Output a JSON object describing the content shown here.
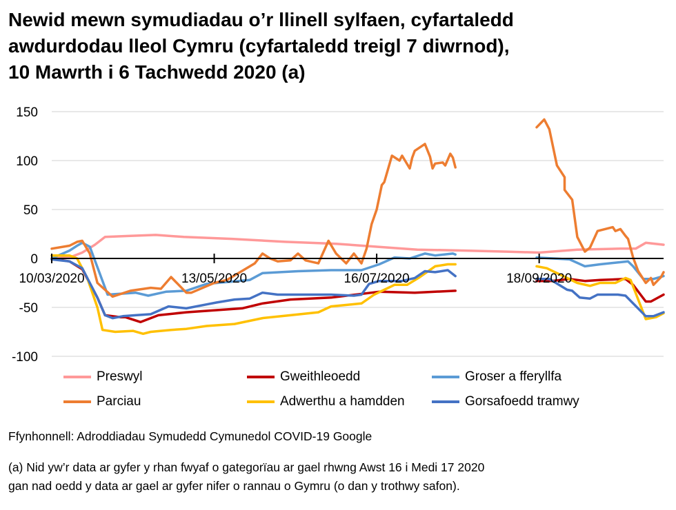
{
  "chart_data": {
    "type": "line",
    "title_lines": [
      "Newid mewn symudiadau o’r llinell sylfaen, cyfartaledd",
      "awdurdodau lleol Cymru (cyfartaledd treigl 7 diwrnod),",
      "10 Mawrth i 6 Tachwedd 2020 (a)"
    ],
    "xlim": [
      "2020-03-10",
      "2020-11-06"
    ],
    "ylim": [
      -100,
      150
    ],
    "y_ticks": [
      150,
      100,
      50,
      0,
      -50,
      -100
    ],
    "x_ticks": [
      {
        "date": "2020-03-10",
        "label": "10/03/2020"
      },
      {
        "date": "2020-05-13",
        "label": "13/05/2020"
      },
      {
        "date": "2020-07-16",
        "label": "16/07/2020"
      },
      {
        "date": "2020-09-18",
        "label": "18/09/2020"
      }
    ],
    "grid": true,
    "legend_position": "bottom",
    "series": [
      {
        "name": "Preswyl",
        "color": "#ff9999",
        "points": [
          [
            "2020-03-10",
            0
          ],
          [
            "2020-03-17",
            1
          ],
          [
            "2020-03-22",
            6
          ],
          [
            "2020-03-27",
            14
          ],
          [
            "2020-03-31",
            22
          ],
          [
            "2020-04-10",
            23
          ],
          [
            "2020-04-20",
            24
          ],
          [
            "2020-05-01",
            22
          ],
          [
            "2020-05-20",
            20
          ],
          [
            "2020-06-10",
            17
          ],
          [
            "2020-06-30",
            15
          ],
          [
            "2020-07-16",
            12
          ],
          [
            "2020-08-01",
            9
          ],
          [
            "2020-08-20",
            8
          ],
          [
            "2020-09-05",
            7
          ],
          [
            "2020-09-18",
            6
          ],
          [
            "2020-10-03",
            9
          ],
          [
            "2020-10-20",
            10
          ],
          [
            "2020-10-26",
            10
          ],
          [
            "2020-10-30",
            16
          ],
          [
            "2020-11-06",
            14
          ]
        ]
      },
      {
        "name": "Gweithleoedd",
        "color": "#c00000",
        "points": [
          [
            "2020-03-10",
            0
          ],
          [
            "2020-03-17",
            -3
          ],
          [
            "2020-03-22",
            -11
          ],
          [
            "2020-03-28",
            -40
          ],
          [
            "2020-03-31",
            -58
          ],
          [
            "2020-04-06",
            -60
          ],
          [
            "2020-04-08",
            -60
          ],
          [
            "2020-04-14",
            -65
          ],
          [
            "2020-04-21",
            -58
          ],
          [
            "2020-05-02",
            -55
          ],
          [
            "2020-05-13",
            -53
          ],
          [
            "2020-05-24",
            -51
          ],
          [
            "2020-06-01",
            -46
          ],
          [
            "2020-06-12",
            -42
          ],
          [
            "2020-06-28",
            -40
          ],
          [
            "2020-07-17",
            -34
          ],
          [
            "2020-07-31",
            -35
          ],
          [
            "2020-08-16",
            -33
          ],
          null,
          [
            "2020-09-17",
            -23
          ],
          [
            "2020-09-23",
            -23
          ],
          [
            "2020-09-30",
            -21
          ],
          [
            "2020-10-06",
            -23
          ],
          [
            "2020-10-12",
            -22
          ],
          [
            "2020-10-22",
            -21
          ],
          [
            "2020-10-25",
            -27
          ],
          [
            "2020-10-30",
            -44
          ],
          [
            "2020-11-01",
            -44
          ],
          [
            "2020-11-06",
            -37
          ]
        ]
      },
      {
        "name": "Groser a fferyllfa",
        "color": "#5b9bd5",
        "points": [
          [
            "2020-03-10",
            0
          ],
          [
            "2020-03-17",
            8
          ],
          [
            "2020-03-20",
            13
          ],
          [
            "2020-03-22",
            16
          ],
          [
            "2020-03-25",
            12
          ],
          [
            "2020-04-01",
            -37
          ],
          [
            "2020-04-12",
            -35
          ],
          [
            "2020-04-17",
            -38
          ],
          [
            "2020-04-24",
            -34
          ],
          [
            "2020-05-02",
            -33
          ],
          [
            "2020-05-10",
            -26
          ],
          [
            "2020-05-27",
            -22
          ],
          [
            "2020-06-01",
            -15
          ],
          [
            "2020-06-15",
            -13
          ],
          [
            "2020-06-28",
            -12
          ],
          [
            "2020-07-10",
            -12
          ],
          [
            "2020-07-17",
            -6
          ],
          [
            "2020-07-23",
            1
          ],
          [
            "2020-07-29",
            0
          ],
          [
            "2020-08-04",
            5
          ],
          [
            "2020-08-08",
            3
          ],
          [
            "2020-08-15",
            5
          ],
          [
            "2020-08-16",
            4
          ],
          null,
          [
            "2020-09-17",
            1
          ],
          [
            "2020-09-30",
            -1
          ],
          [
            "2020-10-06",
            -8
          ],
          [
            "2020-10-12",
            -6
          ],
          [
            "2020-10-23",
            -3
          ],
          [
            "2020-10-25",
            -8
          ],
          [
            "2020-10-29",
            -21
          ],
          [
            "2020-11-02",
            -21
          ],
          [
            "2020-11-06",
            -18
          ]
        ]
      },
      {
        "name": "Parciau",
        "color": "#ed7d31",
        "points": [
          [
            "2020-03-10",
            10
          ],
          [
            "2020-03-17",
            13
          ],
          [
            "2020-03-20",
            17
          ],
          [
            "2020-03-22",
            18
          ],
          [
            "2020-03-25",
            5
          ],
          [
            "2020-03-28",
            -25
          ],
          [
            "2020-04-03",
            -39
          ],
          [
            "2020-04-10",
            -33
          ],
          [
            "2020-04-18",
            -30
          ],
          [
            "2020-04-22",
            -31
          ],
          [
            "2020-04-26",
            -19
          ],
          [
            "2020-05-02",
            -35
          ],
          [
            "2020-05-04",
            -35
          ],
          [
            "2020-05-13",
            -25
          ],
          [
            "2020-05-18",
            -22
          ],
          [
            "2020-05-29",
            -5
          ],
          [
            "2020-06-01",
            5
          ],
          [
            "2020-06-04",
            0
          ],
          [
            "2020-06-07",
            -3
          ],
          [
            "2020-06-12",
            -2
          ],
          [
            "2020-06-15",
            5
          ],
          [
            "2020-06-18",
            -2
          ],
          [
            "2020-06-23",
            -5
          ],
          [
            "2020-06-27",
            18
          ],
          [
            "2020-06-30",
            5
          ],
          [
            "2020-07-04",
            -5
          ],
          [
            "2020-07-07",
            5
          ],
          [
            "2020-07-10",
            -5
          ],
          [
            "2020-07-12",
            10
          ],
          [
            "2020-07-14",
            35
          ],
          [
            "2020-07-16",
            50
          ],
          [
            "2020-07-18",
            75
          ],
          [
            "2020-07-19",
            78
          ],
          [
            "2020-07-22",
            105
          ],
          [
            "2020-07-25",
            100
          ],
          [
            "2020-07-26",
            105
          ],
          [
            "2020-07-29",
            92
          ],
          [
            "2020-07-30",
            103
          ],
          [
            "2020-07-31",
            110
          ],
          [
            "2020-08-04",
            117
          ],
          [
            "2020-08-06",
            104
          ],
          [
            "2020-08-07",
            92
          ],
          [
            "2020-08-08",
            97
          ],
          [
            "2020-08-11",
            98
          ],
          [
            "2020-08-12",
            95
          ],
          [
            "2020-08-14",
            107
          ],
          [
            "2020-08-15",
            103
          ],
          [
            "2020-08-16",
            93
          ],
          null,
          [
            "2020-09-17",
            134
          ],
          [
            "2020-09-20",
            142
          ],
          [
            "2020-09-22",
            132
          ],
          [
            "2020-09-25",
            95
          ],
          [
            "2020-09-28",
            83
          ],
          [
            "2020-09-28",
            70
          ],
          [
            "2020-10-01",
            60
          ],
          [
            "2020-10-03",
            22
          ],
          [
            "2020-10-06",
            7
          ],
          [
            "2020-10-08",
            11
          ],
          [
            "2020-10-11",
            28
          ],
          [
            "2020-10-17",
            32
          ],
          [
            "2020-10-18",
            28
          ],
          [
            "2020-10-20",
            30
          ],
          [
            "2020-10-22",
            23
          ],
          [
            "2020-10-23",
            20
          ],
          [
            "2020-10-25",
            1
          ],
          [
            "2020-10-27",
            -13
          ],
          [
            "2020-10-30",
            -25
          ],
          [
            "2020-11-01",
            -20
          ],
          [
            "2020-11-02",
            -27
          ],
          [
            "2020-11-05",
            -19
          ],
          [
            "2020-11-06",
            -14
          ]
        ]
      },
      {
        "name": "Adwerthu a hamdden",
        "color": "#ffc000",
        "points": [
          [
            "2020-03-10",
            3
          ],
          [
            "2020-03-17",
            3
          ],
          [
            "2020-03-20",
            0
          ],
          [
            "2020-03-24",
            -20
          ],
          [
            "2020-03-28",
            -50
          ],
          [
            "2020-03-30",
            -73
          ],
          [
            "2020-04-04",
            -75
          ],
          [
            "2020-04-11",
            -74
          ],
          [
            "2020-04-15",
            -77
          ],
          [
            "2020-04-18",
            -75
          ],
          [
            "2020-04-26",
            -73
          ],
          [
            "2020-05-02",
            -72
          ],
          [
            "2020-05-10",
            -69
          ],
          [
            "2020-05-21",
            -67
          ],
          [
            "2020-06-01",
            -61
          ],
          [
            "2020-06-12",
            -58
          ],
          [
            "2020-06-23",
            -55
          ],
          [
            "2020-06-28",
            -49
          ],
          [
            "2020-07-10",
            -46
          ],
          [
            "2020-07-15",
            -37
          ],
          [
            "2020-07-23",
            -27
          ],
          [
            "2020-07-28",
            -27
          ],
          [
            "2020-08-02",
            -19
          ],
          [
            "2020-08-08",
            -8
          ],
          [
            "2020-08-13",
            -6
          ],
          [
            "2020-08-16",
            -6
          ],
          null,
          [
            "2020-09-17",
            -8
          ],
          [
            "2020-09-21",
            -10
          ],
          [
            "2020-10-03",
            -25
          ],
          [
            "2020-10-08",
            -28
          ],
          [
            "2020-10-12",
            -25
          ],
          [
            "2020-10-18",
            -25
          ],
          [
            "2020-10-22",
            -20
          ],
          [
            "2020-10-24",
            -22
          ],
          [
            "2020-10-30",
            -62
          ],
          [
            "2020-11-03",
            -60
          ],
          [
            "2020-11-06",
            -56
          ]
        ]
      },
      {
        "name": "Gorsafoedd tramwy",
        "color": "#4472c4",
        "points": [
          [
            "2020-03-10",
            -1
          ],
          [
            "2020-03-17",
            -3
          ],
          [
            "2020-03-22",
            -10
          ],
          [
            "2020-03-28",
            -40
          ],
          [
            "2020-03-31",
            -58
          ],
          [
            "2020-04-03",
            -61
          ],
          [
            "2020-04-07",
            -59
          ],
          [
            "2020-04-12",
            -58
          ],
          [
            "2020-04-18",
            -57
          ],
          [
            "2020-04-25",
            -49
          ],
          [
            "2020-05-02",
            -51
          ],
          [
            "2020-05-10",
            -47
          ],
          [
            "2020-05-14",
            -45
          ],
          [
            "2020-05-21",
            -42
          ],
          [
            "2020-05-27",
            -41
          ],
          [
            "2020-06-01",
            -35
          ],
          [
            "2020-06-07",
            -37
          ],
          [
            "2020-06-28",
            -37
          ],
          [
            "2020-07-07",
            -38
          ],
          [
            "2020-07-10",
            -37
          ],
          [
            "2020-07-13",
            -26
          ],
          [
            "2020-07-17",
            -23
          ],
          [
            "2020-07-26",
            -23
          ],
          [
            "2020-07-31",
            -20
          ],
          [
            "2020-08-04",
            -13
          ],
          [
            "2020-08-08",
            -14
          ],
          [
            "2020-08-13",
            -12
          ],
          [
            "2020-08-16",
            -18
          ],
          null,
          [
            "2020-09-17",
            -21
          ],
          [
            "2020-09-22",
            -21
          ],
          [
            "2020-09-29",
            -32
          ],
          [
            "2020-10-01",
            -33
          ],
          [
            "2020-10-04",
            -40
          ],
          [
            "2020-10-08",
            -41
          ],
          [
            "2020-10-11",
            -37
          ],
          [
            "2020-10-19",
            -37
          ],
          [
            "2020-10-22",
            -38
          ],
          [
            "2020-10-30",
            -59
          ],
          [
            "2020-11-02",
            -59
          ],
          [
            "2020-11-06",
            -55
          ]
        ]
      }
    ]
  },
  "source": "Ffynhonnell: Adroddiadau Symudedd Cymunedol COVID-19 Google",
  "note_lines": [
    "(a) Nid yw’r data ar gyfer y rhan fwyaf o gategorïau ar gael rhwng Awst 16 i Medi 17 2020",
    "gan nad oedd y data ar gael ar gyfer nifer o rannau o Gymru (o dan y trothwy safon)."
  ]
}
